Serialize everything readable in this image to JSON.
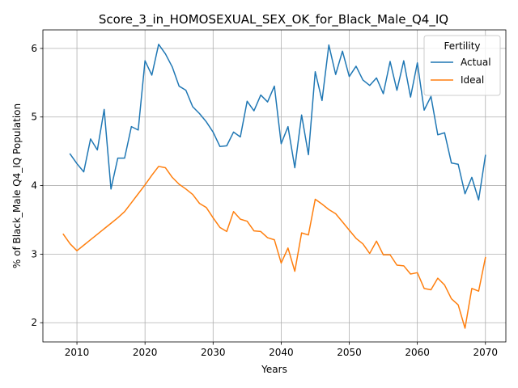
{
  "chart_data": {
    "type": "line",
    "title": "Score_3_in_HOMOSEXUAL_SEX_OK_for_Black_Male_Q4_IQ",
    "xlabel": "Years",
    "ylabel": "% of Black_Male Q4_IQ Population",
    "xlim": [
      2005,
      2073
    ],
    "ylim": [
      1.72,
      6.27
    ],
    "xticks": [
      2010,
      2020,
      2030,
      2040,
      2050,
      2060,
      2070
    ],
    "yticks": [
      2,
      3,
      4,
      5,
      6
    ],
    "grid": true,
    "legend": {
      "title": "Fertility",
      "placement": "top-right"
    },
    "series": [
      {
        "name": "Actual",
        "color": "#1f77b4",
        "x": [
          2009,
          2010,
          2011,
          2012,
          2013,
          2014,
          2015,
          2016,
          2017,
          2018,
          2019,
          2020,
          2021,
          2022,
          2023,
          2024,
          2025,
          2026,
          2027,
          2028,
          2029,
          2030,
          2031,
          2032,
          2033,
          2034,
          2035,
          2036,
          2037,
          2038,
          2039,
          2040,
          2041,
          2042,
          2043,
          2044,
          2045,
          2046,
          2047,
          2048,
          2049,
          2050,
          2051,
          2052,
          2053,
          2054,
          2055,
          2056,
          2057,
          2058,
          2059,
          2060,
          2061,
          2062,
          2063,
          2064,
          2065,
          2066,
          2067,
          2068,
          2069,
          2070
        ],
        "y": [
          4.46,
          4.32,
          4.2,
          4.68,
          4.52,
          5.11,
          3.95,
          4.4,
          4.4,
          4.86,
          4.81,
          5.82,
          5.61,
          6.06,
          5.92,
          5.73,
          5.45,
          5.39,
          5.15,
          5.05,
          4.93,
          4.78,
          4.57,
          4.58,
          4.78,
          4.71,
          5.23,
          5.09,
          5.32,
          5.22,
          5.45,
          4.61,
          4.86,
          4.26,
          5.03,
          4.45,
          5.66,
          5.24,
          6.05,
          5.62,
          5.96,
          5.59,
          5.74,
          5.54,
          5.46,
          5.57,
          5.34,
          5.81,
          5.39,
          5.82,
          5.29,
          5.79,
          5.1,
          5.3,
          4.74,
          4.77,
          4.33,
          4.31,
          3.88,
          4.12,
          3.79,
          4.44
        ]
      },
      {
        "name": "Ideal",
        "color": "#ff7f0e",
        "x": [
          2008,
          2009,
          2010,
          2011,
          2012,
          2013,
          2014,
          2015,
          2016,
          2017,
          2018,
          2019,
          2020,
          2021,
          2022,
          2023,
          2024,
          2025,
          2026,
          2027,
          2028,
          2029,
          2030,
          2031,
          2032,
          2033,
          2034,
          2035,
          2036,
          2037,
          2038,
          2039,
          2040,
          2041,
          2042,
          2043,
          2044,
          2045,
          2046,
          2047,
          2048,
          2049,
          2050,
          2051,
          2052,
          2053,
          2054,
          2055,
          2056,
          2057,
          2058,
          2059,
          2060,
          2061,
          2062,
          2063,
          2064,
          2065,
          2066,
          2067,
          2068,
          2069,
          2070
        ],
        "y": [
          3.29,
          3.15,
          3.05,
          3.13,
          3.21,
          3.29,
          3.37,
          3.45,
          3.53,
          3.62,
          3.75,
          3.88,
          4.01,
          4.15,
          4.28,
          4.26,
          4.12,
          4.02,
          3.95,
          3.87,
          3.74,
          3.68,
          3.53,
          3.39,
          3.33,
          3.62,
          3.51,
          3.48,
          3.34,
          3.33,
          3.24,
          3.21,
          2.87,
          3.09,
          2.75,
          3.31,
          3.28,
          3.8,
          3.73,
          3.65,
          3.59,
          3.47,
          3.35,
          3.23,
          3.15,
          3.01,
          3.19,
          2.99,
          2.99,
          2.84,
          2.83,
          2.71,
          2.73,
          2.5,
          2.48,
          2.65,
          2.55,
          2.35,
          2.26,
          1.92,
          2.5,
          2.46,
          2.95
        ]
      }
    ]
  }
}
